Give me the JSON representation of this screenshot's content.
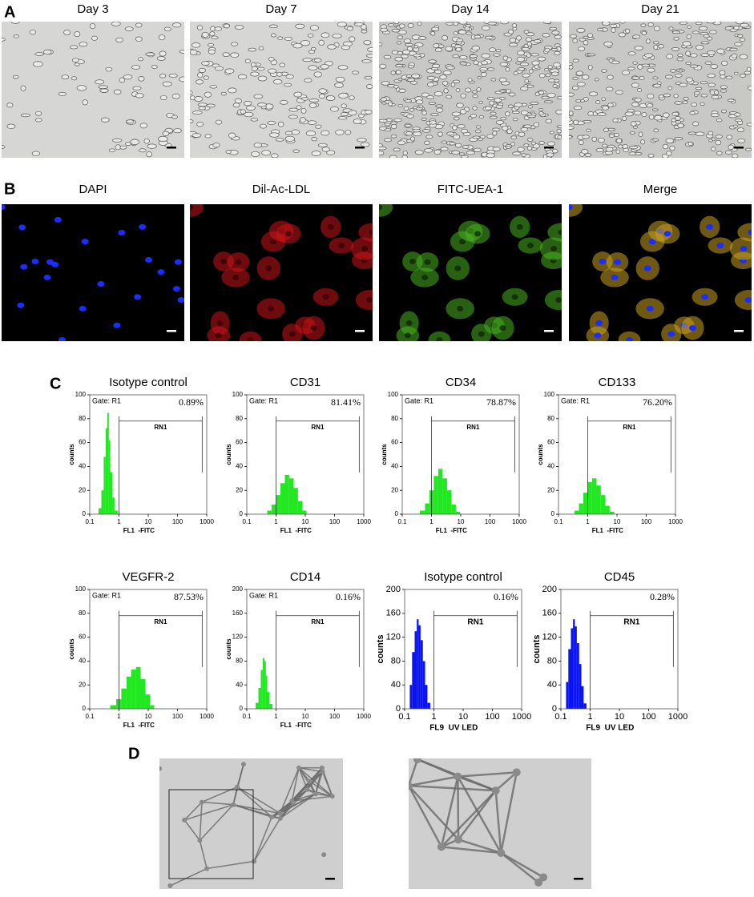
{
  "panel_a": {
    "label": "A",
    "titles": [
      "Day 3",
      "Day 7",
      "Day 14",
      "Day 21"
    ]
  },
  "panel_b": {
    "label": "B",
    "titles": [
      "DAPI",
      "Dil-Ac-LDL",
      "FITC-UEA-1",
      "Merge"
    ]
  },
  "panel_c": {
    "label": "C",
    "plots": [
      {
        "type": "histogram",
        "title": "Isotype control",
        "gate": "Gate: R1",
        "percent": "0.89%",
        "region": "RN1",
        "region_x": [
          1,
          700
        ],
        "x_label": "FL1  -FITC",
        "y_label": "counts",
        "xlog": true,
        "xlim": [
          0.1,
          1000
        ],
        "xticks": [
          0.1,
          1,
          10,
          100,
          1000
        ],
        "ylim": [
          0,
          100
        ],
        "yticks": [
          0,
          20,
          40,
          60,
          80,
          100
        ],
        "color": "#22e822",
        "bins": [
          0.2,
          0.25,
          0.3,
          0.35,
          0.4,
          0.45,
          0.5,
          0.6,
          0.7,
          0.9
        ],
        "counts": [
          5,
          20,
          48,
          72,
          85,
          62,
          35,
          14,
          3
        ]
      },
      {
        "type": "histogram",
        "title": "CD31",
        "gate": "Gate: R1",
        "percent": "81.41%",
        "region": "RN1",
        "region_x": [
          1,
          700
        ],
        "x_label": "FL1  -FITC",
        "y_label": "counts",
        "xlog": true,
        "xlim": [
          0.1,
          1000
        ],
        "xticks": [
          0.1,
          1,
          10,
          100,
          1000
        ],
        "ylim": [
          0,
          100
        ],
        "yticks": [
          0,
          20,
          40,
          60,
          80,
          100
        ],
        "color": "#22e822",
        "bins": [
          0.5,
          0.7,
          1,
          1.4,
          2,
          2.8,
          4,
          5.6,
          8,
          11
        ],
        "counts": [
          3,
          8,
          16,
          26,
          33,
          30,
          22,
          11,
          3
        ]
      },
      {
        "type": "histogram",
        "title": "CD34",
        "gate": "Gate: R1",
        "percent": "78.87%",
        "region": "RN1",
        "region_x": [
          1,
          700
        ],
        "x_label": "FL1  -FITC",
        "y_label": "counts",
        "xlog": true,
        "xlim": [
          0.1,
          1000
        ],
        "xticks": [
          0.1,
          1,
          10,
          100,
          1000
        ],
        "ylim": [
          0,
          100
        ],
        "yticks": [
          0,
          20,
          40,
          60,
          80,
          100
        ],
        "color": "#22e822",
        "bins": [
          0.4,
          0.6,
          0.85,
          1.2,
          1.7,
          2.4,
          3.4,
          4.8,
          6.8,
          9.5
        ],
        "counts": [
          3,
          9,
          20,
          32,
          38,
          30,
          20,
          8,
          2
        ]
      },
      {
        "type": "histogram",
        "title": "CD133",
        "gate": "Gate: R1",
        "percent": "76.20%",
        "region": "RN1",
        "region_x": [
          1,
          700
        ],
        "x_label": "FL1  -FITC",
        "y_label": "counts",
        "xlog": true,
        "xlim": [
          0.1,
          1000
        ],
        "xticks": [
          0.1,
          1,
          10,
          100,
          1000
        ],
        "ylim": [
          0,
          100
        ],
        "yticks": [
          0,
          20,
          40,
          60,
          80,
          100
        ],
        "color": "#22e822",
        "bins": [
          0.35,
          0.5,
          0.7,
          1,
          1.4,
          2,
          2.8,
          4,
          5.6,
          8
        ],
        "counts": [
          3,
          9,
          18,
          27,
          30,
          24,
          16,
          7,
          2
        ]
      },
      {
        "type": "histogram",
        "title": "VEGFR-2",
        "gate": "Gate: R1",
        "percent": "87.53%",
        "region": "RN1",
        "region_x": [
          1,
          700
        ],
        "x_label": "FL1  -FITC",
        "y_label": "counts",
        "xlog": true,
        "xlim": [
          0.1,
          1000
        ],
        "xticks": [
          0.1,
          1,
          10,
          100,
          1000
        ],
        "ylim": [
          0,
          100
        ],
        "yticks": [
          0,
          20,
          40,
          60,
          80,
          100
        ],
        "color": "#22e822",
        "bins": [
          0.5,
          0.8,
          1.2,
          1.8,
          2.6,
          3.8,
          5.5,
          8,
          11.5,
          16
        ],
        "counts": [
          3,
          8,
          17,
          27,
          33,
          35,
          25,
          12,
          3
        ]
      },
      {
        "type": "histogram",
        "title": "CD14",
        "gate": "Gate: R1",
        "percent": "0.16%",
        "region": "RN1",
        "region_x": [
          1,
          700
        ],
        "x_label": "FL1  -FITC",
        "y_label": "counts",
        "xlog": true,
        "xlim": [
          0.1,
          1000
        ],
        "xticks": [
          0.1,
          1,
          10,
          100,
          1000
        ],
        "ylim": [
          0,
          200
        ],
        "yticks": [
          0,
          40,
          80,
          120,
          160,
          200
        ],
        "color": "#22e822",
        "bins": [
          0.2,
          0.25,
          0.3,
          0.35,
          0.4,
          0.45,
          0.5,
          0.6,
          0.75
        ],
        "counts": [
          10,
          35,
          65,
          85,
          80,
          55,
          28,
          8
        ]
      },
      {
        "type": "histogram",
        "title": "Isotype control",
        "gate": null,
        "percent": "0.16%",
        "region": "RN1",
        "region_x": [
          1,
          700
        ],
        "x_label": "FL9  UV LED",
        "y_label": "counts",
        "xlog": true,
        "xlim": [
          0.1,
          1000
        ],
        "xticks": [
          0.1,
          1,
          10,
          100,
          1000
        ],
        "ylim": [
          0,
          200
        ],
        "yticks": [
          0,
          40,
          80,
          120,
          160,
          200
        ],
        "color": "#0a14f0",
        "bins": [
          0.15,
          0.18,
          0.22,
          0.26,
          0.3,
          0.35,
          0.42,
          0.5,
          0.6,
          0.75
        ],
        "counts": [
          40,
          95,
          130,
          150,
          140,
          115,
          80,
          40,
          10
        ]
      },
      {
        "type": "histogram",
        "title": "CD45",
        "gate": null,
        "percent": "0.28%",
        "region": "RN1",
        "region_x": [
          1,
          700
        ],
        "x_label": "FL9  UV LED",
        "y_label": "counts",
        "xlog": true,
        "xlim": [
          0.1,
          1000
        ],
        "xticks": [
          0.1,
          1,
          10,
          100,
          1000
        ],
        "ylim": [
          0,
          200
        ],
        "yticks": [
          0,
          40,
          80,
          120,
          160,
          200
        ],
        "color": "#0a14f0",
        "bins": [
          0.15,
          0.18,
          0.22,
          0.26,
          0.3,
          0.35,
          0.42,
          0.5,
          0.6,
          0.75
        ],
        "counts": [
          45,
          100,
          135,
          150,
          138,
          110,
          75,
          38,
          9
        ]
      }
    ]
  },
  "panel_d": {
    "label": "D"
  }
}
